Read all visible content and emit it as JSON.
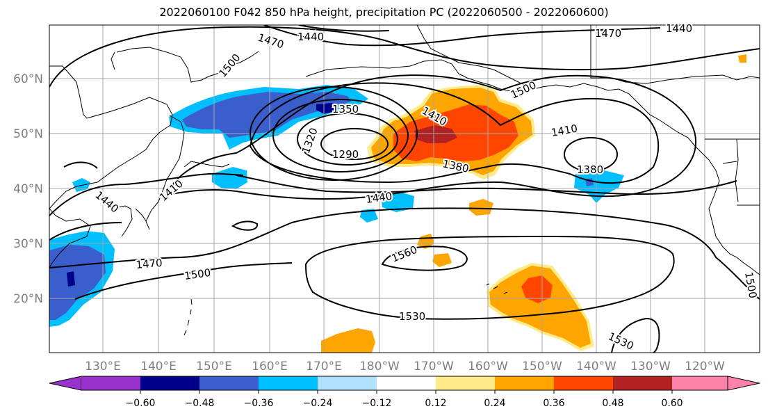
{
  "title": "2022060100 F042 850 hPa height, precipitation PC (2022060500 - 2022060600)",
  "map": {
    "lat_labels": [
      "60°N",
      "50°N",
      "40°N",
      "30°N",
      "20°N"
    ],
    "lon_labels": [
      "130°E",
      "140°E",
      "150°E",
      "160°E",
      "170°E",
      "180°W",
      "170°W",
      "160°W",
      "150°W",
      "140°W",
      "130°W",
      "120°W"
    ],
    "contour_labels": [
      "1290",
      "1320",
      "1350",
      "1380",
      "1410",
      "1440",
      "1470",
      "1500",
      "1530",
      "1560"
    ],
    "colors": {
      "contour": "#000000",
      "coast": "#000000",
      "grid": "#a6a6a6",
      "tick_label": "#808080"
    }
  },
  "colorbar": {
    "tick_labels": [
      "−0.60",
      "−0.48",
      "−0.36",
      "−0.24",
      "−0.12",
      "0.12",
      "0.24",
      "0.36",
      "0.48",
      "0.60"
    ],
    "colors": [
      "#9932cc",
      "#00008b",
      "#3a5fcd",
      "#00bfff",
      "#b0e2ff",
      "#ffffff",
      "#ffeb8a",
      "#ffa500",
      "#ff4500",
      "#b22222",
      "#ff82ab"
    ]
  }
}
